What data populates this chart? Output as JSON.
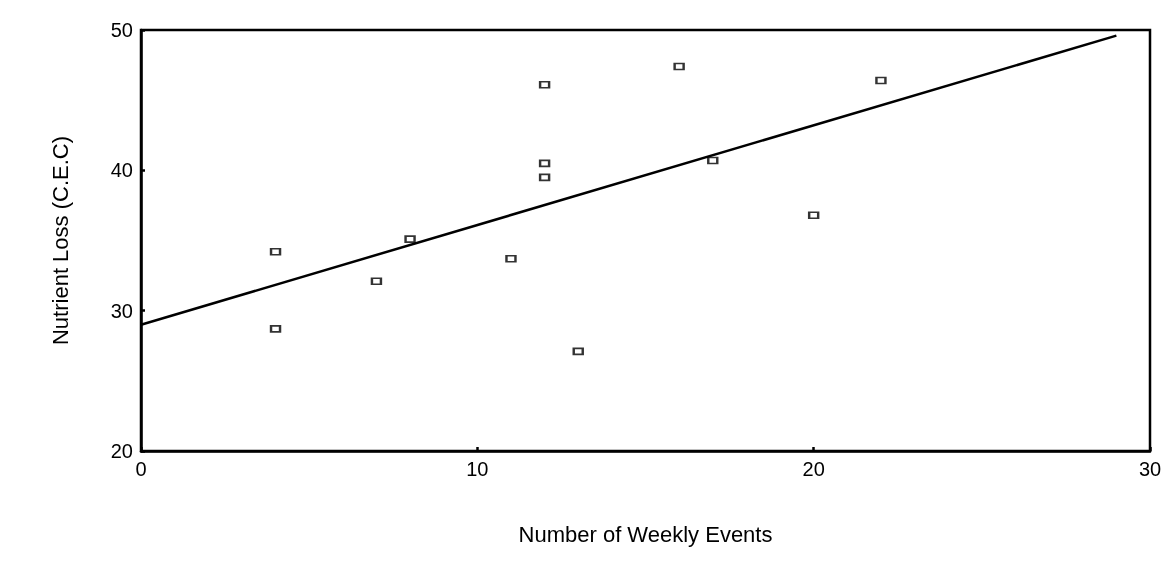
{
  "chart_data": {
    "type": "scatter",
    "xlabel": "Number of Weekly Events",
    "ylabel": "Nutrient Loss (C.E.C)",
    "xlim": [
      0,
      30
    ],
    "xticks": [
      0,
      10,
      20,
      30
    ],
    "ylim": [
      20,
      50
    ],
    "yticks": [
      20,
      30,
      40,
      50
    ],
    "grid": false,
    "series": [
      {
        "color": "#000000",
        "marker": "square",
        "x": [
          4,
          4,
          7,
          8,
          11,
          12,
          12,
          12,
          13,
          16,
          17,
          20,
          22
        ],
        "values": [
          34.2,
          28.7,
          32.1,
          35.1,
          33.7,
          46.1,
          40.5,
          39.5,
          27.1,
          47.4,
          40.7,
          36.8,
          46.4
        ]
      },
      {
        "type": "line",
        "color": "#000000",
        "x": [
          0,
          29
        ],
        "values": [
          29.0,
          49.6
        ]
      }
    ]
  }
}
